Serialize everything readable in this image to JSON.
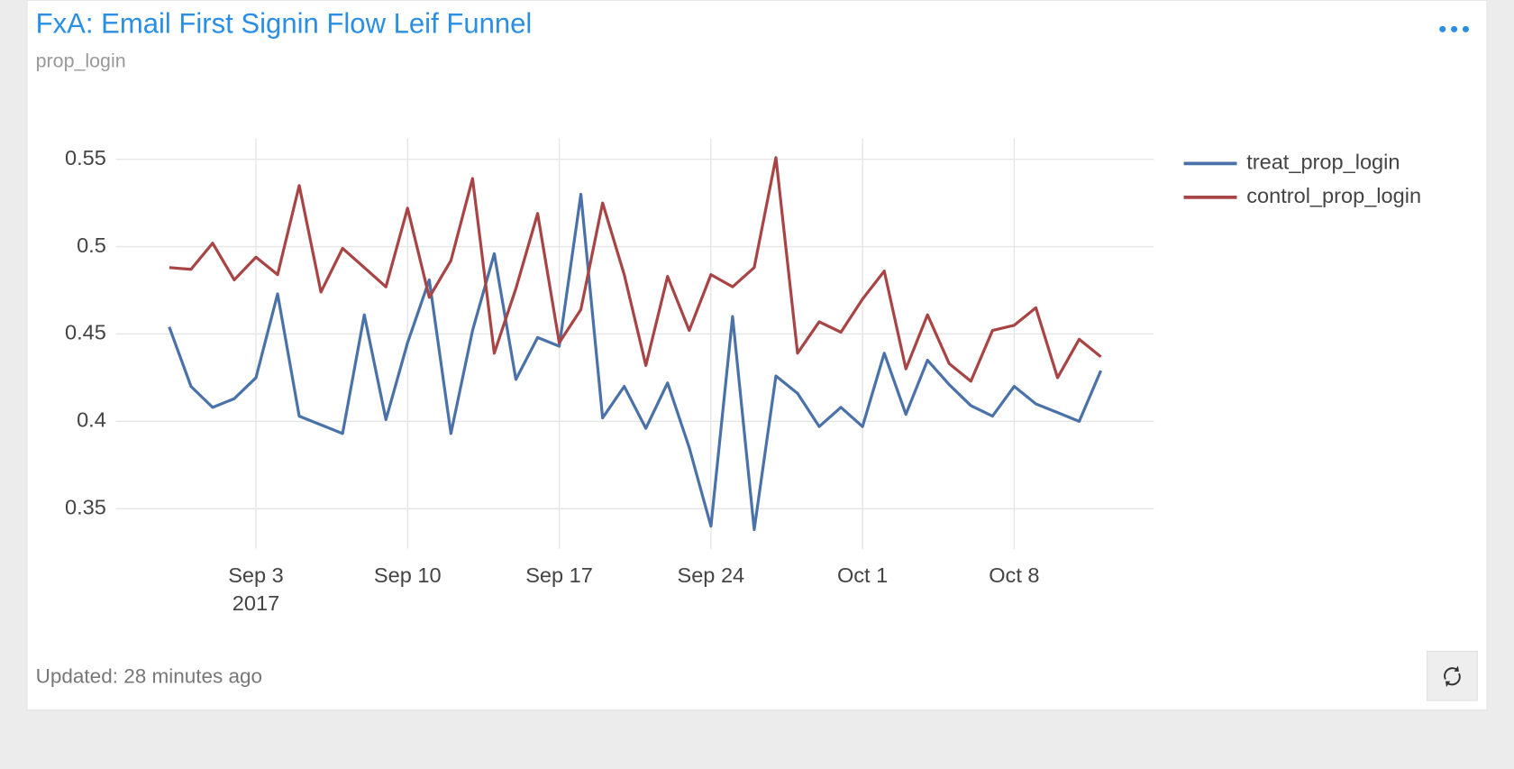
{
  "chart_data": {
    "type": "line",
    "title": "FxA: Email First Signin Flow Leif Funnel",
    "subtitle": "prop_login",
    "x": [
      "2017-08-30",
      "2017-08-31",
      "2017-09-01",
      "2017-09-02",
      "2017-09-03",
      "2017-09-04",
      "2017-09-05",
      "2017-09-06",
      "2017-09-07",
      "2017-09-08",
      "2017-09-09",
      "2017-09-10",
      "2017-09-11",
      "2017-09-12",
      "2017-09-13",
      "2017-09-14",
      "2017-09-15",
      "2017-09-16",
      "2017-09-17",
      "2017-09-18",
      "2017-09-19",
      "2017-09-20",
      "2017-09-21",
      "2017-09-22",
      "2017-09-23",
      "2017-09-24",
      "2017-09-25",
      "2017-09-26",
      "2017-09-27",
      "2017-09-28",
      "2017-09-29",
      "2017-09-30",
      "2017-10-01",
      "2017-10-02",
      "2017-10-03",
      "2017-10-04",
      "2017-10-05",
      "2017-10-06",
      "2017-10-07",
      "2017-10-08",
      "2017-10-09",
      "2017-10-10",
      "2017-10-11",
      "2017-10-12"
    ],
    "series": [
      {
        "name": "treat_prop_login",
        "color": "#4a72a8",
        "values": [
          0.454,
          0.42,
          0.408,
          0.413,
          0.425,
          0.473,
          0.403,
          0.398,
          0.393,
          0.461,
          0.401,
          0.445,
          0.481,
          0.393,
          0.452,
          0.496,
          0.424,
          0.448,
          0.443,
          0.53,
          0.402,
          0.42,
          0.396,
          0.422,
          0.385,
          0.34,
          0.46,
          0.338,
          0.426,
          0.416,
          0.397,
          0.408,
          0.397,
          0.439,
          0.404,
          0.435,
          0.421,
          0.409,
          0.403,
          0.42,
          0.41,
          0.405,
          0.4,
          0.429
        ]
      },
      {
        "name": "control_prop_login",
        "color": "#a84444",
        "values": [
          0.488,
          0.487,
          0.502,
          0.481,
          0.494,
          0.484,
          0.535,
          0.474,
          0.499,
          0.488,
          0.477,
          0.522,
          0.471,
          0.492,
          0.539,
          0.439,
          0.476,
          0.519,
          0.445,
          0.464,
          0.525,
          0.484,
          0.432,
          0.483,
          0.452,
          0.484,
          0.477,
          0.488,
          0.551,
          0.439,
          0.457,
          0.451,
          0.47,
          0.486,
          0.43,
          0.461,
          0.433,
          0.423,
          0.452,
          0.455,
          0.465,
          0.425,
          0.447,
          0.437
        ]
      }
    ],
    "xlim": [
      "2017-08-27",
      "2017-10-14"
    ],
    "xticks": [
      {
        "value": "2017-09-03",
        "label": "Sep 3"
      },
      {
        "value": "2017-09-10",
        "label": "Sep 10"
      },
      {
        "value": "2017-09-17",
        "label": "Sep 17"
      },
      {
        "value": "2017-09-24",
        "label": "Sep 24"
      },
      {
        "value": "2017-10-01",
        "label": "Oct 1"
      },
      {
        "value": "2017-10-08",
        "label": "Oct 8"
      }
    ],
    "x_year_label": "2017",
    "ylim": [
      0.327,
      0.562
    ],
    "yticks": [
      0.35,
      0.4,
      0.45,
      0.5,
      0.55
    ],
    "grid": true,
    "legend": "right"
  },
  "footer": "Updated: 28 minutes ago"
}
